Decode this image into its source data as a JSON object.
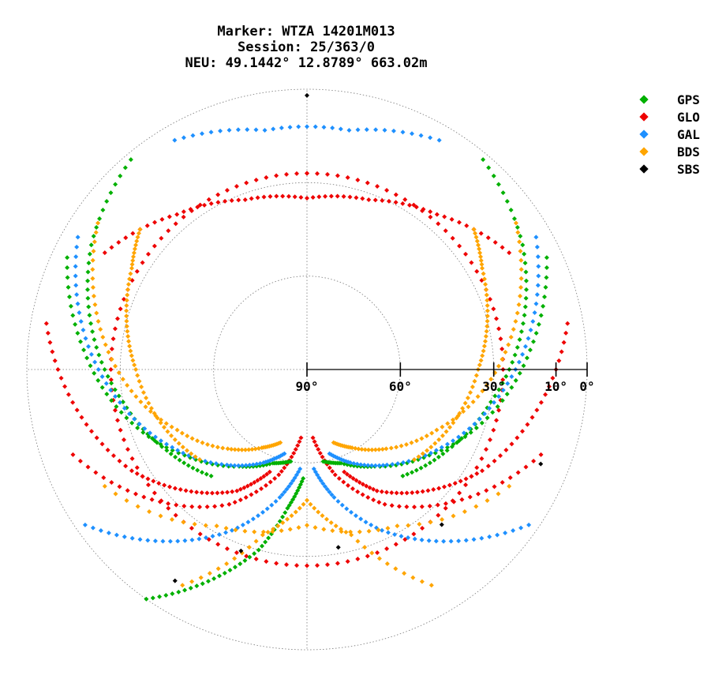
{
  "title": {
    "line1": "Marker: WTZA 14201M013",
    "line2": "Session: 25/363/0",
    "line3": "NEU: 49.1442° 12.8789° 663.02m"
  },
  "legend": [
    {
      "name": "GPS",
      "color": "#00b000"
    },
    {
      "name": "GLO",
      "color": "#ee0000"
    },
    {
      "name": "GAL",
      "color": "#1e90ff"
    },
    {
      "name": "BDS",
      "color": "#ffa500"
    },
    {
      "name": "SBS",
      "color": "#000000"
    }
  ],
  "chart_data": {
    "type": "scatter",
    "subtype": "skyplot",
    "elevation_ticks": [
      {
        "value": 90,
        "label": "90°"
      },
      {
        "value": 60,
        "label": "60°"
      },
      {
        "value": 30,
        "label": "30°"
      },
      {
        "value": 10,
        "label": "10°"
      },
      {
        "value": 0,
        "label": "0°"
      }
    ],
    "elevation_range": [
      0,
      90
    ],
    "azimuth_range": [
      0,
      360
    ],
    "grid": true,
    "legend_position": "top-right",
    "series": [
      {
        "name": "GLO",
        "color": "#ee0000",
        "tracks": [
          {
            "az": [
              0,
              30,
              60,
              90,
              120,
              150,
              180,
              210,
              240,
              270,
              300,
              330,
              360
            ],
            "el": [
              27,
              27,
              27,
              27,
              27,
              27,
              27,
              27,
              27,
              27,
              27,
              27,
              27
            ]
          },
          {
            "az": [
              300,
              320,
              340,
              0,
              20,
              40,
              60
            ],
            "el": [
              15,
              25,
              32,
              35,
              32,
              25,
              15
            ]
          },
          {
            "az": [
              250,
              230,
              210,
              195,
              185
            ],
            "el": [
              10,
              25,
              40,
              55,
              68
            ]
          },
          {
            "az": [
              110,
              130,
              150,
              165,
              175
            ],
            "el": [
              10,
              25,
              40,
              55,
              68
            ]
          },
          {
            "az": [
              280,
              260,
              240,
              225,
              210,
              200
            ],
            "el": [
              5,
              15,
              25,
              35,
              45,
              55
            ]
          },
          {
            "az": [
              80,
              100,
              120,
              135,
              150,
              160
            ],
            "el": [
              5,
              15,
              25,
              35,
              45,
              55
            ]
          }
        ]
      },
      {
        "name": "GPS",
        "color": "#00b000",
        "tracks": [
          {
            "az": [
              295,
              275,
              255,
              235,
              215,
              200,
              190
            ],
            "el": [
              5,
              18,
              30,
              42,
              52,
              58,
              60
            ]
          },
          {
            "az": [
              65,
              85,
              105,
              125,
              145,
              160,
              170
            ],
            "el": [
              5,
              18,
              30,
              42,
              52,
              58,
              60
            ]
          },
          {
            "az": [
              320,
              300,
              280,
              260,
              240,
              222
            ],
            "el": [
              2,
              10,
              20,
              30,
              38,
              44
            ]
          },
          {
            "az": [
              40,
              60,
              80,
              100,
              120,
              138
            ],
            "el": [
              2,
              10,
              20,
              30,
              38,
              44
            ]
          },
          {
            "az": [
              215,
              205,
              195,
              188,
              182
            ],
            "el": [
              0,
              15,
              30,
              45,
              55
            ]
          }
        ]
      },
      {
        "name": "GAL",
        "color": "#1e90ff",
        "tracks": [
          {
            "az": [
              300,
              280,
              260,
              240,
              220,
              205,
              195
            ],
            "el": [
              5,
              17,
              29,
              40,
              50,
              57,
              62
            ]
          },
          {
            "az": [
              60,
              80,
              100,
              120,
              140,
              155,
              165
            ],
            "el": [
              5,
              17,
              29,
              40,
              50,
              57,
              62
            ]
          },
          {
            "az": [
              330,
              350,
              10,
              30
            ],
            "el": [
              5,
              12,
              12,
              5
            ]
          },
          {
            "az": [
              235,
              220,
              205,
              192,
              184
            ],
            "el": [
              3,
              18,
              33,
              48,
              58
            ]
          },
          {
            "az": [
              125,
              140,
              155,
              168,
              176
            ],
            "el": [
              3,
              18,
              33,
              48,
              58
            ]
          }
        ]
      },
      {
        "name": "BDS",
        "color": "#ffa500",
        "tracks": [
          {
            "az": [
              305,
              285,
              265,
              245,
              225,
              210,
              200
            ],
            "el": [
              8,
              20,
              32,
              44,
              54,
              61,
              65
            ]
          },
          {
            "az": [
              55,
              75,
              95,
              115,
              135,
              150,
              160
            ],
            "el": [
              8,
              20,
              32,
              44,
              54,
              61,
              65
            ]
          },
          {
            "az": [
              310,
              300,
              285,
              270,
              250,
              230
            ],
            "el": [
              20,
              25,
              30,
              35,
              40,
              45
            ]
          },
          {
            "az": [
              50,
              60,
              75,
              90,
              110,
              130
            ],
            "el": [
              20,
              25,
              30,
              35,
              40,
              45
            ]
          },
          {
            "az": [
              150,
              165,
              180,
              195,
              210
            ],
            "el": [
              10,
              35,
              48,
              35,
              10
            ]
          },
          {
            "az": [
              120,
              150,
              180,
              210,
              240
            ],
            "el": [
              15,
              32,
              40,
              32,
              15
            ]
          }
        ]
      },
      {
        "name": "SBS",
        "color": "#000000",
        "points": [
          {
            "az": 0,
            "el": 2
          },
          {
            "az": 112,
            "el": 9
          },
          {
            "az": 139,
            "el": 24
          },
          {
            "az": 200,
            "el": 28
          },
          {
            "az": 212,
            "el": 10
          },
          {
            "az": 170,
            "el": 32
          }
        ]
      }
    ]
  }
}
